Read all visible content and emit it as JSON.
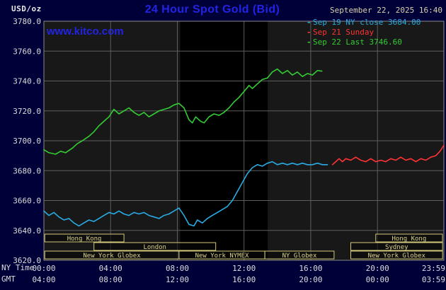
{
  "header": {
    "unit": "USD/oz",
    "title": "24 Hour Spot Gold (Bid)",
    "datetime": "September 22, 2025 16:40",
    "legend": [
      {
        "marker": "-",
        "label": "Sep 19 NY close 3684.00",
        "color": "#29abe2"
      },
      {
        "marker": "-",
        "label": "Sep 21 Sunday",
        "color": "#ff3333"
      },
      {
        "marker": "-",
        "label": "Sep 22 Last 3746.60",
        "color": "#33cc33"
      }
    ]
  },
  "watermark": "www.kitco.com",
  "chart_data": {
    "type": "line",
    "title": "24 Hour Spot Gold (Bid)",
    "ylabel": "USD/oz",
    "plot_bg": "#181818",
    "grid_color": "#5e5e5e",
    "border_color": "#8a8a8a",
    "tick_text_color": "#dcdcdc",
    "grid": true,
    "x_axis": {
      "ny_row_label": "NY Time",
      "gmt_row_label": "GMT",
      "range_hours": [
        0,
        23.983
      ],
      "ticks": [
        {
          "hour": 0,
          "ny": "00:00",
          "gmt": "04:00"
        },
        {
          "hour": 4,
          "ny": "04:00",
          "gmt": "08:00"
        },
        {
          "hour": 8,
          "ny": "08:00",
          "gmt": "12:00"
        },
        {
          "hour": 12,
          "ny": "12:00",
          "gmt": "16:00"
        },
        {
          "hour": 16,
          "ny": "16:00",
          "gmt": "20:00"
        },
        {
          "hour": 20,
          "ny": "20:00",
          "gmt": "00:00"
        },
        {
          "hour": 23.983,
          "ny": "23:59",
          "gmt": "03:59"
        }
      ]
    },
    "y_axis": {
      "range": [
        3620,
        3780
      ],
      "tick_step": 20,
      "ticks": [
        {
          "value": 3780,
          "label": "3780.0"
        },
        {
          "value": 3760,
          "label": "3760.0"
        },
        {
          "value": 3740,
          "label": "3740.0"
        },
        {
          "value": 3720,
          "label": "3720.0"
        },
        {
          "value": 3700,
          "label": "3700.0"
        },
        {
          "value": 3680,
          "label": "3680.0"
        },
        {
          "value": 3660,
          "label": "3660.0"
        },
        {
          "value": 3640,
          "label": "3640.0"
        },
        {
          "value": 3620,
          "label": "3620.0"
        }
      ]
    },
    "nymex_session_shading": {
      "start_hour": 8.17,
      "end_hour": 13.42,
      "color": "#000000"
    },
    "series": [
      {
        "name": "Sep 19 NY close 3684.00",
        "color": "#29abe2",
        "points": [
          [
            0.0,
            3653
          ],
          [
            0.3,
            3650
          ],
          [
            0.6,
            3652
          ],
          [
            0.9,
            3649
          ],
          [
            1.2,
            3647
          ],
          [
            1.5,
            3648
          ],
          [
            1.8,
            3645
          ],
          [
            2.1,
            3643
          ],
          [
            2.4,
            3645
          ],
          [
            2.7,
            3647
          ],
          [
            3.0,
            3646
          ],
          [
            3.3,
            3648
          ],
          [
            3.6,
            3650
          ],
          [
            3.9,
            3652
          ],
          [
            4.2,
            3651
          ],
          [
            4.5,
            3653
          ],
          [
            4.8,
            3651
          ],
          [
            5.1,
            3650
          ],
          [
            5.4,
            3652
          ],
          [
            5.7,
            3651
          ],
          [
            6.0,
            3652
          ],
          [
            6.3,
            3650
          ],
          [
            6.6,
            3649
          ],
          [
            6.9,
            3648
          ],
          [
            7.2,
            3650
          ],
          [
            7.5,
            3651
          ],
          [
            7.8,
            3653
          ],
          [
            8.1,
            3655
          ],
          [
            8.4,
            3650
          ],
          [
            8.7,
            3644
          ],
          [
            9.0,
            3643
          ],
          [
            9.2,
            3647
          ],
          [
            9.5,
            3645
          ],
          [
            9.8,
            3648
          ],
          [
            10.1,
            3650
          ],
          [
            10.4,
            3652
          ],
          [
            10.7,
            3654
          ],
          [
            11.0,
            3656
          ],
          [
            11.3,
            3660
          ],
          [
            11.6,
            3666
          ],
          [
            11.9,
            3672
          ],
          [
            12.2,
            3678
          ],
          [
            12.5,
            3682
          ],
          [
            12.8,
            3684
          ],
          [
            13.1,
            3683
          ],
          [
            13.4,
            3685
          ],
          [
            13.7,
            3686
          ],
          [
            14.0,
            3684
          ],
          [
            14.3,
            3685
          ],
          [
            14.6,
            3684
          ],
          [
            14.9,
            3685
          ],
          [
            15.2,
            3684
          ],
          [
            15.5,
            3685
          ],
          [
            15.8,
            3684
          ],
          [
            16.1,
            3684
          ],
          [
            16.4,
            3685
          ],
          [
            16.7,
            3684
          ],
          [
            17.0,
            3684
          ]
        ]
      },
      {
        "name": "Sep 21 Sunday",
        "color": "#ff3333",
        "points": [
          [
            17.3,
            3684
          ],
          [
            17.5,
            3686
          ],
          [
            17.7,
            3688
          ],
          [
            17.9,
            3686
          ],
          [
            18.1,
            3688
          ],
          [
            18.4,
            3687
          ],
          [
            18.7,
            3689
          ],
          [
            19.0,
            3687
          ],
          [
            19.3,
            3686
          ],
          [
            19.6,
            3688
          ],
          [
            19.9,
            3686
          ],
          [
            20.2,
            3687
          ],
          [
            20.5,
            3686
          ],
          [
            20.8,
            3688
          ],
          [
            21.1,
            3687
          ],
          [
            21.4,
            3689
          ],
          [
            21.7,
            3687
          ],
          [
            22.0,
            3688
          ],
          [
            22.3,
            3686
          ],
          [
            22.6,
            3688
          ],
          [
            22.9,
            3687
          ],
          [
            23.2,
            3689
          ],
          [
            23.5,
            3690
          ],
          [
            23.75,
            3693
          ],
          [
            23.983,
            3697
          ]
        ]
      },
      {
        "name": "Sep 22 Last 3746.60",
        "color": "#33cc33",
        "points": [
          [
            0.0,
            3694
          ],
          [
            0.3,
            3692
          ],
          [
            0.7,
            3691
          ],
          [
            1.0,
            3693
          ],
          [
            1.3,
            3692
          ],
          [
            1.7,
            3695
          ],
          [
            2.0,
            3698
          ],
          [
            2.3,
            3700
          ],
          [
            2.7,
            3703
          ],
          [
            3.0,
            3706
          ],
          [
            3.3,
            3710
          ],
          [
            3.6,
            3713
          ],
          [
            3.9,
            3716
          ],
          [
            4.2,
            3721
          ],
          [
            4.5,
            3718
          ],
          [
            4.8,
            3720
          ],
          [
            5.1,
            3722
          ],
          [
            5.4,
            3719
          ],
          [
            5.7,
            3717
          ],
          [
            6.0,
            3719
          ],
          [
            6.3,
            3716
          ],
          [
            6.6,
            3718
          ],
          [
            6.9,
            3720
          ],
          [
            7.2,
            3721
          ],
          [
            7.5,
            3722
          ],
          [
            7.8,
            3724
          ],
          [
            8.1,
            3725
          ],
          [
            8.4,
            3722
          ],
          [
            8.7,
            3714
          ],
          [
            8.9,
            3712
          ],
          [
            9.1,
            3716
          ],
          [
            9.4,
            3713
          ],
          [
            9.6,
            3712
          ],
          [
            9.9,
            3716
          ],
          [
            10.2,
            3718
          ],
          [
            10.5,
            3717
          ],
          [
            10.8,
            3719
          ],
          [
            11.1,
            3722
          ],
          [
            11.4,
            3726
          ],
          [
            11.7,
            3729
          ],
          [
            12.0,
            3733
          ],
          [
            12.3,
            3737
          ],
          [
            12.5,
            3735
          ],
          [
            12.8,
            3738
          ],
          [
            13.1,
            3741
          ],
          [
            13.4,
            3742
          ],
          [
            13.7,
            3746
          ],
          [
            14.0,
            3748
          ],
          [
            14.3,
            3745
          ],
          [
            14.6,
            3747
          ],
          [
            14.9,
            3744
          ],
          [
            15.2,
            3746
          ],
          [
            15.5,
            3743
          ],
          [
            15.8,
            3745
          ],
          [
            16.1,
            3744
          ],
          [
            16.4,
            3747
          ],
          [
            16.67,
            3746.6
          ]
        ]
      }
    ],
    "sessions": [
      {
        "row": 0,
        "start": 0.05,
        "end": 4.8,
        "label": "Hong Kong"
      },
      {
        "row": 0,
        "start": 19.9,
        "end": 23.9,
        "label": "Hong Kong"
      },
      {
        "row": 1,
        "start": 3.0,
        "end": 10.3,
        "label": "London"
      },
      {
        "row": 1,
        "start": 18.4,
        "end": 23.9,
        "label": "Sydney"
      },
      {
        "row": 2,
        "start": 0.05,
        "end": 8.1,
        "label": "New York Globex"
      },
      {
        "row": 2,
        "start": 8.1,
        "end": 13.25,
        "label": "New York NYMEX"
      },
      {
        "row": 2,
        "start": 13.25,
        "end": 17.4,
        "label": "NY Globex"
      },
      {
        "row": 2,
        "start": 18.4,
        "end": 23.9,
        "label": "New York Globex"
      }
    ],
    "session_style": {
      "border": "#d2c87c",
      "text": "#ddd28a"
    }
  }
}
